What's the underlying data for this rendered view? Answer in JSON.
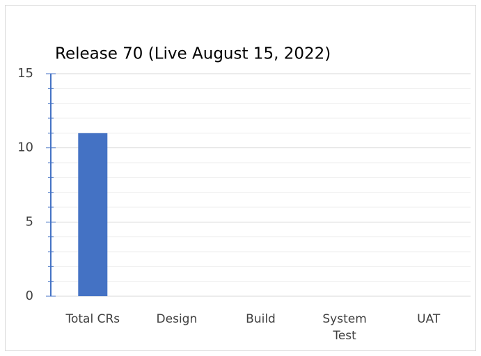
{
  "chart_data": {
    "type": "bar",
    "title": "Release 70 (Live August 15, 2022)",
    "categories": [
      "Total CRs",
      "Design",
      "Build",
      "System Test",
      "UAT"
    ],
    "values": [
      11,
      0,
      0,
      0,
      0
    ],
    "color": "#4472c4",
    "ylim": [
      0,
      15
    ],
    "yticks": [
      0,
      5,
      10,
      15
    ],
    "grid": true
  }
}
